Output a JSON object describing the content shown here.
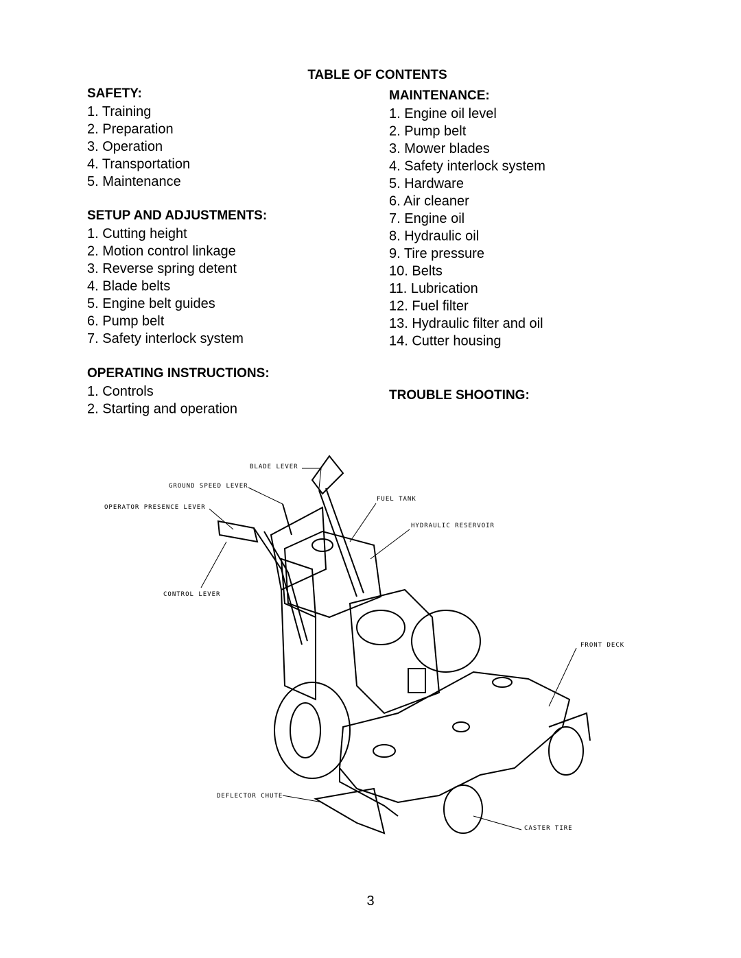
{
  "title": "TABLE OF CONTENTS",
  "sections": [
    {
      "heading": "SAFETY:",
      "items": [
        "1. Training",
        "2. Preparation",
        "3. Operation",
        "4. Transportation",
        "5. Maintenance"
      ]
    },
    {
      "heading": "SETUP AND ADJUSTMENTS:",
      "items": [
        "1. Cutting height",
        "2. Motion control linkage",
        "3. Reverse spring detent",
        "4. Blade belts",
        "5. Engine belt guides",
        "6. Pump belt",
        "7. Safety interlock system"
      ]
    },
    {
      "heading": "OPERATING INSTRUCTIONS:",
      "items": [
        "1. Controls",
        "2. Starting and operation"
      ]
    },
    {
      "heading": "MAINTENANCE:",
      "items": [
        "1. Engine oil level",
        "2. Pump belt",
        "3. Mower blades",
        "4. Safety interlock system",
        "5. Hardware",
        "6. Air cleaner",
        "7. Engine oil",
        "8. Hydraulic oil",
        "9. Tire pressure",
        "10. Belts",
        "11. Lubrication",
        "12. Fuel filter",
        "13. Hydraulic filter and oil",
        "14. Cutter housing"
      ]
    },
    {
      "heading": "TROUBLE SHOOTING:",
      "items": []
    }
  ],
  "diagram": {
    "labels": [
      "BLADE LEVER",
      "GROUND SPEED LEVER",
      "OPERATOR PRESENCE LEVER",
      "FUEL TANK",
      "HYDRAULIC RESERVOIR",
      "CONTROL LEVER",
      "FRONT DECK",
      "DEFLECTOR CHUTE",
      "CASTER TIRE"
    ]
  },
  "page_number": "3"
}
